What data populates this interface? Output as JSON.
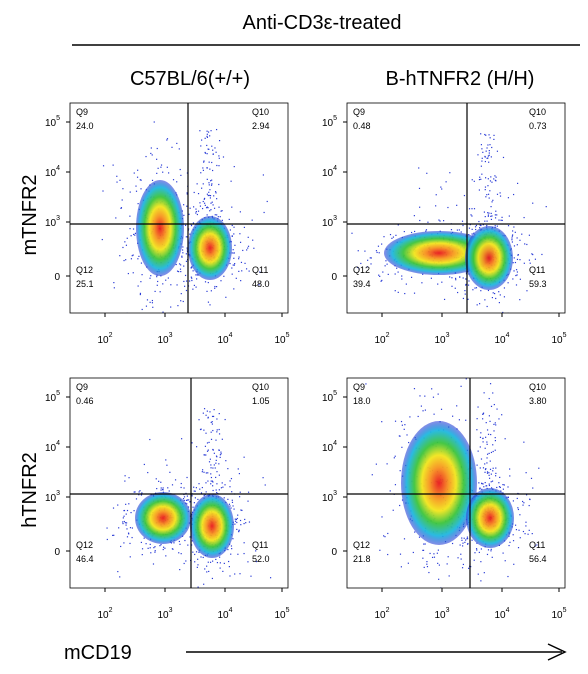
{
  "header": {
    "title": "Anti-CD3ε-treated",
    "x_axis_label": "mCD19"
  },
  "columns": [
    "C57BL/6(+/+)",
    "B-hTNFR2 (H/H)"
  ],
  "rows": [
    "mTNFR2",
    "hTNFR2"
  ],
  "axis_ticks": {
    "x": [
      {
        "base": "10",
        "exp": "2"
      },
      {
        "base": "10",
        "exp": "3"
      },
      {
        "base": "10",
        "exp": "4"
      },
      {
        "base": "10",
        "exp": "5"
      }
    ],
    "y": [
      {
        "base": "10",
        "exp": "5"
      },
      {
        "base": "10",
        "exp": "4"
      },
      {
        "base": "10",
        "exp": "3"
      },
      {
        "base": "0"
      }
    ]
  },
  "panels": [
    {
      "quadrants": [
        {
          "name": "Q9",
          "value": "24.0"
        },
        {
          "name": "Q10",
          "value": "2.94"
        },
        {
          "name": "Q12",
          "value": "25.1"
        },
        {
          "name": "Q11",
          "value": "48.0"
        }
      ]
    },
    {
      "quadrants": [
        {
          "name": "Q9",
          "value": "0.48"
        },
        {
          "name": "Q10",
          "value": "0.73"
        },
        {
          "name": "Q12",
          "value": "39.4"
        },
        {
          "name": "Q11",
          "value": "59.3"
        }
      ]
    },
    {
      "quadrants": [
        {
          "name": "Q9",
          "value": "0.46"
        },
        {
          "name": "Q10",
          "value": "1.05"
        },
        {
          "name": "Q12",
          "value": "46.4"
        },
        {
          "name": "Q11",
          "value": "52.0"
        }
      ]
    },
    {
      "quadrants": [
        {
          "name": "Q9",
          "value": "18.0"
        },
        {
          "name": "Q10",
          "value": "3.80"
        },
        {
          "name": "Q12",
          "value": "21.8"
        },
        {
          "name": "Q11",
          "value": "56.4"
        }
      ]
    }
  ]
}
